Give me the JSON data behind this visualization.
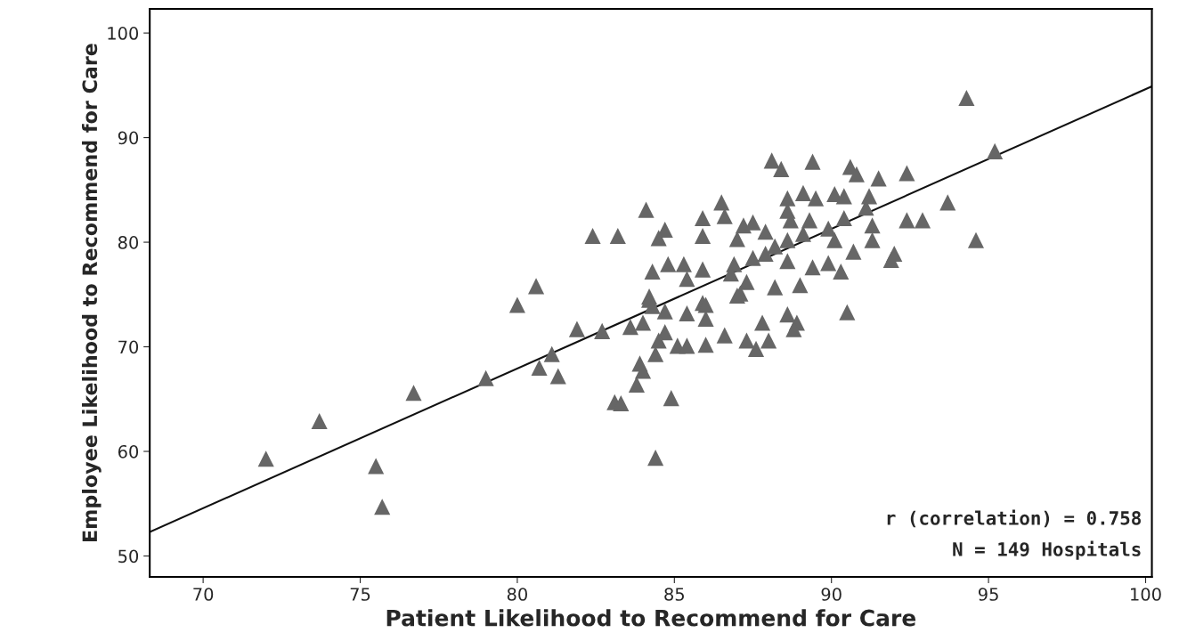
{
  "chart_data": {
    "type": "scatter",
    "xlabel": "Patient Likelihood to Recommend for Care",
    "ylabel": "Employee Likelihood to Recommend for Care",
    "xlim": [
      68.3,
      100.2
    ],
    "ylim": [
      48.0,
      102.3
    ],
    "xticks": [
      70,
      75,
      80,
      85,
      90,
      95,
      100
    ],
    "yticks": [
      50,
      60,
      70,
      80,
      90,
      100
    ],
    "grid": false,
    "annotations": [
      "r (correlation) = 0.758",
      "N = 149 Hospitals"
    ],
    "series": [
      {
        "color": "#666666",
        "marker": "triangle",
        "x": [
          72.0,
          73.7,
          75.5,
          75.7,
          76.7,
          79.0,
          80.0,
          80.7,
          80.6,
          81.1,
          81.3,
          81.9,
          82.7,
          82.4,
          83.1,
          83.8,
          83.3,
          84.9,
          84.4,
          88.1,
          88.4,
          84.1,
          86.5,
          83.2,
          84.7,
          84.5,
          85.9,
          86.6,
          85.9,
          87.0,
          87.2,
          84.3,
          84.8,
          85.3,
          85.9,
          85.4,
          84.2,
          85.9,
          86.9,
          86.8,
          87.3,
          88.2,
          87.1,
          88.6,
          87.5,
          94.3,
          95.2,
          89.4,
          90.6,
          90.8,
          91.5,
          92.4,
          93.7,
          94.6,
          89.1,
          90.1,
          90.4,
          91.2,
          88.6,
          89.5,
          91.1,
          92.4,
          92.9,
          91.3,
          90.4,
          89.3,
          88.7,
          89.9,
          89.1,
          90.1,
          91.3,
          90.7,
          92.0,
          88.6,
          88.2,
          83.6,
          84.0,
          84.7,
          84.5,
          85.1,
          85.4,
          84.4,
          83.9,
          84.0,
          86.0,
          86.6,
          87.3,
          87.6,
          88.0,
          87.8,
          88.6,
          88.9,
          88.8,
          87.0,
          84.2,
          84.3,
          84.7,
          85.4,
          86.0,
          86.0,
          90.5,
          91.9,
          87.5,
          87.9,
          89.4,
          89.9,
          89.0,
          87.9,
          88.6,
          90.3
        ],
        "values": [
          59.3,
          62.9,
          58.6,
          54.7,
          65.6,
          67.0,
          74.0,
          68.0,
          75.8,
          69.3,
          67.2,
          71.7,
          71.5,
          80.6,
          64.7,
          66.4,
          64.6,
          65.1,
          59.4,
          87.8,
          87.0,
          83.1,
          83.8,
          80.6,
          81.2,
          80.4,
          82.3,
          82.5,
          80.6,
          80.3,
          81.6,
          77.2,
          77.9,
          77.9,
          77.4,
          76.5,
          74.8,
          74.2,
          77.9,
          77.0,
          76.2,
          75.7,
          75.1,
          78.2,
          78.5,
          93.8,
          88.7,
          87.7,
          87.2,
          86.5,
          86.1,
          86.6,
          83.8,
          80.2,
          84.7,
          84.6,
          84.4,
          84.4,
          84.2,
          84.2,
          83.3,
          82.1,
          82.1,
          81.6,
          82.3,
          82.1,
          82.1,
          81.3,
          80.8,
          80.2,
          80.2,
          79.1,
          78.9,
          83.0,
          79.6,
          71.9,
          72.3,
          71.4,
          70.6,
          70.1,
          70.1,
          69.3,
          68.4,
          67.7,
          70.2,
          71.1,
          70.6,
          69.8,
          70.6,
          72.3,
          73.1,
          72.3,
          71.7,
          74.9,
          74.5,
          73.9,
          73.4,
          73.2,
          74.0,
          72.7,
          73.3,
          78.3,
          81.9,
          81.0,
          77.6,
          78.0,
          75.9,
          78.9,
          80.2,
          77.2
        ]
      },
      {
        "type": "line",
        "color": "#111111",
        "x": [
          68.3,
          100.2
        ],
        "values": [
          52.3,
          94.9
        ]
      }
    ]
  }
}
